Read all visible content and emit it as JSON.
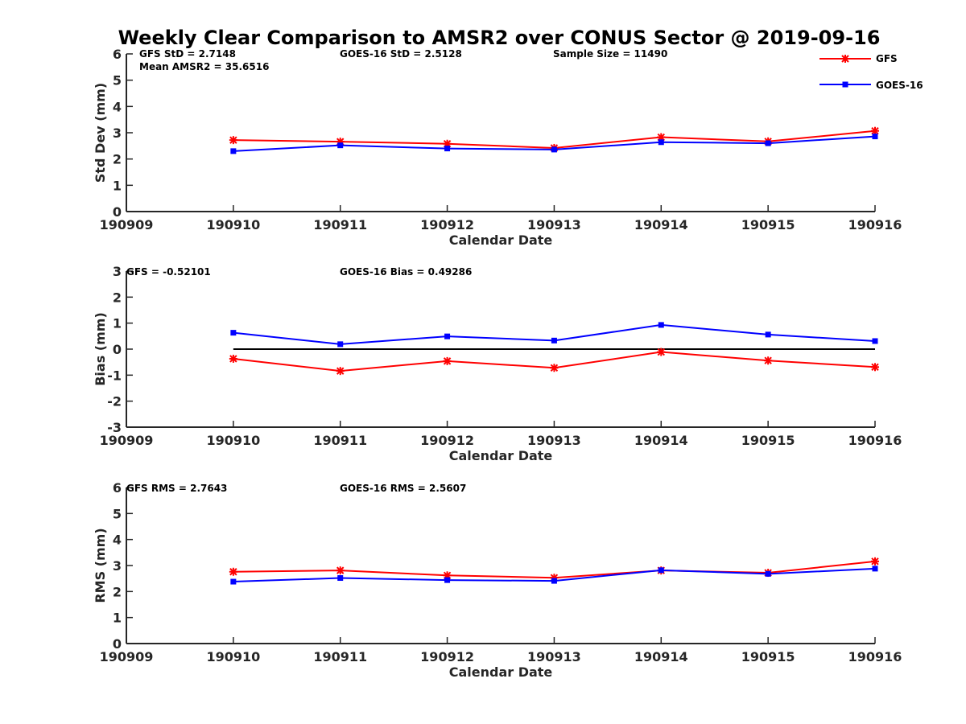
{
  "chart_data": {
    "type": "line",
    "title": "Weekly Clear Comparison to AMSR2 over CONUS Sector @ 2019-09-16",
    "legend": {
      "placement": "top-right",
      "entries": [
        {
          "name": "GFS",
          "color": "#ff0000",
          "marker": "asterisk"
        },
        {
          "name": "GOES-16",
          "color": "#0000ff",
          "marker": "square"
        }
      ]
    },
    "panels": [
      {
        "key": "std",
        "ylabel": "Std Dev (mm)",
        "xlabel": "Calendar Date",
        "ylim": [
          0,
          6
        ],
        "yticks": [
          "0",
          "1",
          "2",
          "3",
          "4",
          "5",
          "6"
        ],
        "xticks": [
          "190909",
          "190910",
          "190911",
          "190912",
          "190913",
          "190914",
          "190915",
          "190916"
        ],
        "annotations": [
          "GFS StD = 2.7148",
          "Mean AMSR2 = 35.6516",
          "GOES-16 StD = 2.5128",
          "Sample Size = 11490"
        ],
        "series": [
          {
            "name": "GFS",
            "color": "#ff0000",
            "marker": "asterisk",
            "values": [
              2.72,
              2.66,
              2.58,
              2.42,
              2.83,
              2.67,
              3.07
            ]
          },
          {
            "name": "GOES-16",
            "color": "#0000ff",
            "marker": "square",
            "values": [
              2.3,
              2.52,
              2.4,
              2.36,
              2.64,
              2.6,
              2.86
            ]
          }
        ]
      },
      {
        "key": "bias",
        "ylabel": "Bias (mm)",
        "xlabel": "Calendar Date",
        "ylim": [
          -3,
          3
        ],
        "yticks": [
          "-3",
          "-2",
          "-1",
          "0",
          "1",
          "2",
          "3"
        ],
        "xticks": [
          "190909",
          "190910",
          "190911",
          "190912",
          "190913",
          "190914",
          "190915",
          "190916"
        ],
        "annotations": [
          "GFS = -0.52101",
          "GOES-16 Bias  = 0.49286"
        ],
        "zero_line": true,
        "series": [
          {
            "name": "GFS",
            "color": "#ff0000",
            "marker": "asterisk",
            "values": [
              -0.37,
              -0.84,
              -0.46,
              -0.72,
              -0.11,
              -0.44,
              -0.69
            ]
          },
          {
            "name": "GOES-16",
            "color": "#0000ff",
            "marker": "square",
            "values": [
              0.63,
              0.19,
              0.49,
              0.33,
              0.93,
              0.56,
              0.31
            ]
          }
        ]
      },
      {
        "key": "rms",
        "ylabel": "RMS (mm)",
        "xlabel": "Calendar Date",
        "ylim": [
          0,
          6
        ],
        "yticks": [
          "0",
          "1",
          "2",
          "3",
          "4",
          "5",
          "6"
        ],
        "xticks": [
          "190909",
          "190910",
          "190911",
          "190912",
          "190913",
          "190914",
          "190915",
          "190916"
        ],
        "annotations": [
          "GFS RMS = 2.7643",
          "GOES-16 RMS = 2.5607"
        ],
        "series": [
          {
            "name": "GFS",
            "color": "#ff0000",
            "marker": "asterisk",
            "values": [
              2.76,
              2.81,
              2.62,
              2.53,
              2.81,
              2.72,
              3.16
            ]
          },
          {
            "name": "GOES-16",
            "color": "#0000ff",
            "marker": "square",
            "values": [
              2.38,
              2.52,
              2.44,
              2.41,
              2.82,
              2.68,
              2.88
            ]
          }
        ]
      }
    ]
  }
}
